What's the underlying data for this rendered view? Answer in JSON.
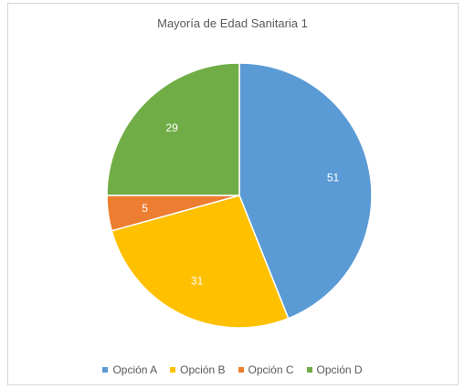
{
  "chart_data": {
    "type": "pie",
    "title": "Mayoría de Edad Sanitaria 1",
    "categories": [
      "Opción A",
      "Opción B",
      "Opción C",
      "Opción D"
    ],
    "values": [
      51,
      31,
      5,
      29
    ],
    "colors": [
      "#5b9bd5",
      "#ffc000",
      "#ed7d31",
      "#70ad47"
    ],
    "data_labels": [
      "51",
      "31",
      "5",
      "29"
    ],
    "start_angle_deg": 0,
    "direction": "clockwise",
    "legend_position": "bottom"
  }
}
